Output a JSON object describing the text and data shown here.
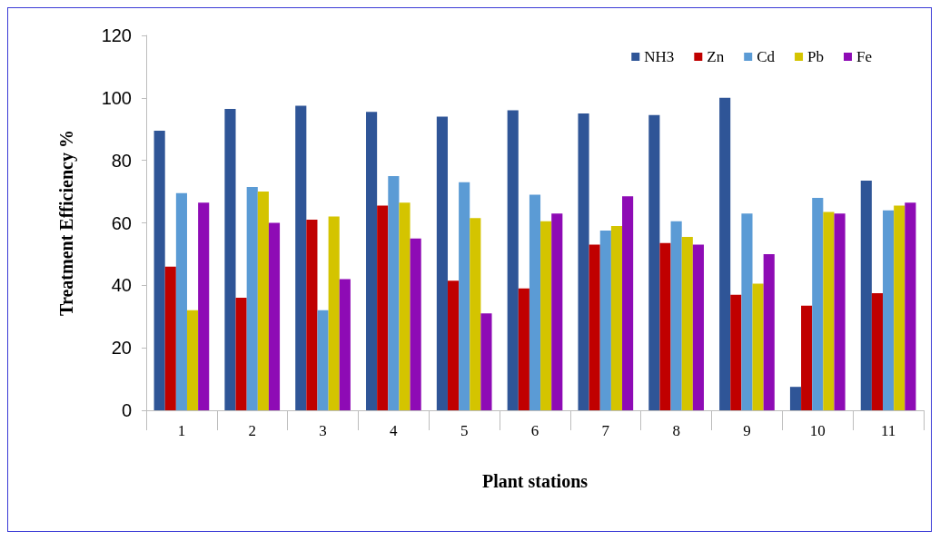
{
  "chart_data": {
    "type": "bar",
    "xlabel": "Plant stations",
    "ylabel": "Treatment Efficiency %",
    "categories": [
      "1",
      "2",
      "3",
      "4",
      "5",
      "6",
      "7",
      "8",
      "9",
      "10",
      "11"
    ],
    "series": [
      {
        "name": "NH3",
        "color": "#2f5597",
        "values": [
          89.5,
          96.5,
          97.5,
          95.5,
          94,
          96,
          95,
          94.5,
          100,
          7.5,
          73.5
        ]
      },
      {
        "name": "Zn",
        "color": "#c00000",
        "values": [
          46,
          36,
          61,
          65.5,
          41.5,
          39,
          53,
          53.5,
          37,
          33.5,
          37.5
        ]
      },
      {
        "name": "Cd",
        "color": "#5b9bd5",
        "values": [
          69.5,
          71.5,
          32,
          75,
          73,
          69,
          57.5,
          60.5,
          63,
          68,
          64
        ]
      },
      {
        "name": "Pb",
        "color": "#d4c400",
        "values": [
          32,
          70,
          62,
          66.5,
          61.5,
          60.5,
          59,
          55.5,
          40.5,
          63.5,
          65.5
        ]
      },
      {
        "name": "Fe",
        "color": "#8e0bb5",
        "values": [
          66.5,
          60,
          42,
          55,
          31,
          63,
          68.5,
          53,
          50,
          63,
          66.5
        ]
      }
    ],
    "ylim": [
      0,
      120
    ],
    "yticks": [
      0,
      20,
      40,
      60,
      80,
      100,
      120
    ],
    "grid": false,
    "legend": "top right"
  }
}
